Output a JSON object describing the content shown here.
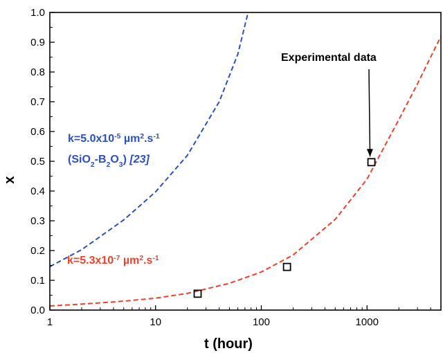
{
  "chart_data": {
    "type": "line",
    "xlabel": "t (hour)",
    "ylabel": "x",
    "x_scale": "log",
    "xlim": [
      1,
      5000
    ],
    "ylim": [
      0,
      1.0
    ],
    "x_ticks": [
      {
        "value": 1,
        "label": "1"
      },
      {
        "value": 10,
        "label": "10"
      },
      {
        "value": 100,
        "label": "100"
      },
      {
        "value": 1000,
        "label": "1000"
      }
    ],
    "y_ticks": [
      {
        "value": 0.0,
        "label": "0.0"
      },
      {
        "value": 0.1,
        "label": "0.1"
      },
      {
        "value": 0.2,
        "label": "0.2"
      },
      {
        "value": 0.3,
        "label": "0.3"
      },
      {
        "value": 0.4,
        "label": "0.4"
      },
      {
        "value": 0.5,
        "label": "0.5"
      },
      {
        "value": 0.6,
        "label": "0.6"
      },
      {
        "value": 0.7,
        "label": "0.7"
      },
      {
        "value": 0.8,
        "label": "0.8"
      },
      {
        "value": 0.9,
        "label": "0.9"
      },
      {
        "value": 1.0,
        "label": "1.0"
      }
    ],
    "grid": false,
    "series": [
      {
        "label_lines": [
          "k=5.0x10",
          "-5",
          " µm",
          "2",
          ".s",
          "-1"
        ],
        "label_line2": [
          "(SiO",
          "2",
          "-B",
          "2",
          "O",
          "3",
          ") ",
          "[23]"
        ],
        "style": "dashed",
        "color": "#2b4fc4",
        "x": [
          1,
          2,
          5,
          10,
          20,
          40,
          60,
          75
        ],
        "y": [
          0.146,
          0.203,
          0.303,
          0.397,
          0.52,
          0.7,
          0.86,
          1.0
        ]
      },
      {
        "label_lines": [
          "k=5.3x10",
          "-7",
          " µm",
          "2",
          ".s",
          "-1"
        ],
        "style": "dashed",
        "color": "#f0402a",
        "x": [
          1,
          2,
          5,
          10,
          20,
          50,
          100,
          200,
          500,
          1000,
          2000,
          3000,
          5000
        ],
        "y": [
          0.014,
          0.02,
          0.03,
          0.04,
          0.056,
          0.09,
          0.128,
          0.185,
          0.305,
          0.44,
          0.64,
          0.76,
          0.92
        ]
      }
    ],
    "markers": {
      "label": "Experimental data",
      "shape": "open-square",
      "color": "#000000",
      "x": [
        25,
        175,
        1100
      ],
      "y": [
        0.055,
        0.145,
        0.497
      ]
    }
  }
}
